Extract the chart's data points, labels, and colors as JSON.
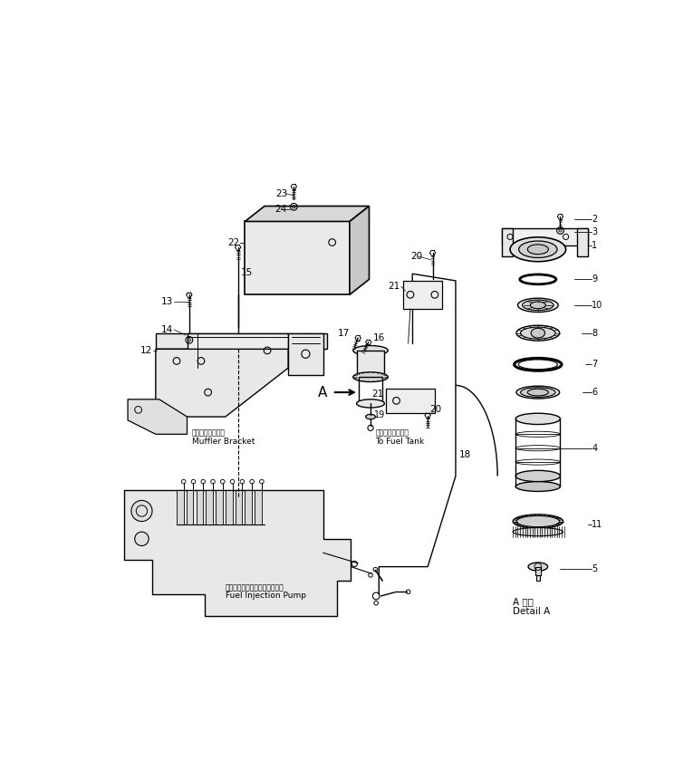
{
  "bg_color": "#ffffff",
  "line_color": "#000000",
  "figsize": [
    7.44,
    8.5
  ],
  "dpi": 100,
  "detail_label_line1": "A 詳細",
  "detail_label_line2": "Detail A",
  "muffler_label_jp": "マフラブラケット",
  "muffler_label_en": "Muffler Bracket",
  "pump_label_jp": "フェルインジェクションポンプ",
  "pump_label_en": "Fuel Injection Pump",
  "tank_label_jp": "フゥエルタンクへ",
  "tank_label_en": "To Fuel Tank"
}
